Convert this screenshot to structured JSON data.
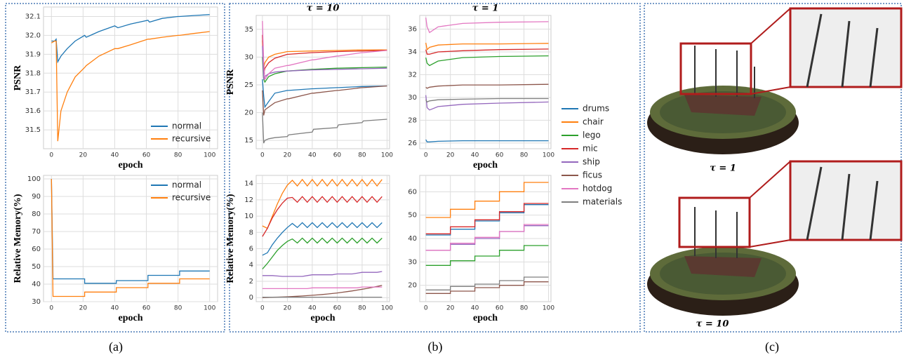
{
  "chart_data": [
    {
      "type": "line",
      "ylabel": "PSNR",
      "xlabel": "epoch",
      "legend": "lower right",
      "x": [
        0,
        2,
        3,
        4,
        6,
        10,
        15,
        21,
        22,
        30,
        40,
        42,
        50,
        61,
        62,
        70,
        80,
        81,
        90,
        100
      ],
      "series": [
        {
          "name": "normal",
          "color": "#1f77b4",
          "values": [
            31.97,
            31.97,
            31.98,
            31.86,
            31.89,
            31.93,
            31.97,
            32.0,
            31.99,
            32.02,
            32.05,
            32.04,
            32.06,
            32.08,
            32.07,
            32.09,
            32.1,
            32.1,
            32.105,
            32.11
          ]
        },
        {
          "name": "recursive",
          "color": "#ff7f0e",
          "values": [
            31.96,
            31.97,
            31.97,
            31.44,
            31.6,
            31.7,
            31.78,
            31.83,
            31.84,
            31.89,
            31.93,
            31.93,
            31.95,
            31.98,
            31.98,
            31.99,
            32.0,
            32.0,
            32.01,
            32.02
          ]
        }
      ],
      "xlim": [
        -5,
        105
      ],
      "xticks": [
        0,
        20,
        40,
        60,
        80,
        100
      ],
      "ylim": [
        31.4,
        32.15
      ],
      "yticks": [
        31.5,
        31.6,
        31.7,
        31.8,
        31.9,
        {
          "value": 32,
          "label": "32.0"
        },
        32.1
      ],
      "grid": true
    },
    {
      "type": "line",
      "ylabel": "Relative Memory(%)",
      "xlabel": "epoch",
      "legend": "upper right",
      "x": [
        0,
        1,
        21,
        21,
        41,
        41,
        61,
        61,
        81,
        81,
        100
      ],
      "series": [
        {
          "name": "normal",
          "color": "#1f77b4",
          "values": [
            100,
            43,
            43,
            40.5,
            40.5,
            42,
            42,
            45,
            45,
            47.5,
            47.5
          ]
        },
        {
          "name": "recursive",
          "color": "#ff7f0e",
          "values": [
            100,
            33,
            33,
            35.5,
            35.5,
            38,
            38,
            40.5,
            40.5,
            43,
            43
          ]
        }
      ],
      "xlim": [
        -5,
        105
      ],
      "xticks": [
        0,
        20,
        40,
        60,
        80,
        100
      ],
      "ylim": [
        30,
        102
      ],
      "yticks": [
        30,
        40,
        50,
        60,
        70,
        80,
        90,
        100
      ],
      "grid": true
    },
    {
      "type": "line",
      "title": "τ = 10",
      "ylabel": "PSNR",
      "legend": "outside right",
      "x": [
        0,
        1,
        2,
        5,
        10,
        20,
        21,
        40,
        41,
        60,
        61,
        80,
        81,
        100
      ],
      "series": [
        {
          "name": "drums",
          "color": "#1f77b4",
          "values": [
            26,
            23,
            21,
            22,
            23.5,
            24,
            24,
            24.3,
            24.3,
            24.5,
            24.5,
            24.7,
            24.7,
            24.8
          ]
        },
        {
          "name": "chair",
          "color": "#ff7f0e",
          "values": [
            33,
            28,
            29,
            30,
            30.5,
            31,
            31,
            31.1,
            31.1,
            31.2,
            31.2,
            31.3,
            31.3,
            31.3
          ]
        },
        {
          "name": "lego",
          "color": "#2ca02c",
          "values": [
            30,
            26,
            25.5,
            26.5,
            27,
            27.5,
            27.5,
            27.8,
            27.8,
            28,
            28,
            28.1,
            28.1,
            28.2
          ]
        },
        {
          "name": "mic",
          "color": "#d62728",
          "values": [
            34,
            27,
            28,
            29,
            29.8,
            30.5,
            30.5,
            30.8,
            30.8,
            31,
            31,
            31.1,
            31.1,
            31.2
          ]
        },
        {
          "name": "ship",
          "color": "#9467bd",
          "values": [
            32,
            26,
            26.5,
            27,
            27.3,
            27.5,
            27.5,
            27.7,
            27.7,
            27.8,
            27.8,
            27.9,
            27.9,
            28
          ]
        },
        {
          "name": "ficus",
          "color": "#8c564b",
          "values": [
            24,
            19.5,
            20.5,
            21,
            21.8,
            22.5,
            22.5,
            23.5,
            23.5,
            24,
            24,
            24.5,
            24.5,
            24.8
          ]
        },
        {
          "name": "hotdog",
          "color": "#e377c2",
          "values": [
            36.5,
            29,
            26,
            27,
            28,
            28.5,
            28.5,
            29.5,
            29.5,
            30.2,
            30.2,
            30.8,
            30.8,
            31.2
          ]
        },
        {
          "name": "materials",
          "color": "#7f7f7f",
          "values": [
            20,
            14.5,
            15,
            15.3,
            15.5,
            15.7,
            16,
            16.5,
            17,
            17.3,
            17.8,
            18.2,
            18.5,
            18.8
          ]
        }
      ],
      "xlim": [
        -5,
        102
      ],
      "xticks": [
        0,
        20,
        40,
        60,
        80,
        100
      ],
      "ylim": [
        13.5,
        37.5
      ],
      "yticks": [
        15,
        20,
        25,
        30,
        35
      ],
      "grid": true
    },
    {
      "type": "line",
      "title": "τ = 1",
      "xlabel": "epoch",
      "x": [
        0,
        1,
        3,
        10,
        30,
        60,
        100
      ],
      "series": [
        {
          "color": "#1f77b4",
          "values": [
            26.3,
            26.1,
            26.1,
            26.15,
            26.2,
            26.2,
            26.2
          ]
        },
        {
          "color": "#ff7f0e",
          "values": [
            34.8,
            34.2,
            34.4,
            34.6,
            34.7,
            34.7,
            34.75
          ]
        },
        {
          "color": "#2ca02c",
          "values": [
            33.5,
            33.0,
            32.8,
            33.2,
            33.5,
            33.6,
            33.65
          ]
        },
        {
          "color": "#d62728",
          "values": [
            34.2,
            33.8,
            33.8,
            34.0,
            34.1,
            34.2,
            34.25
          ]
        },
        {
          "color": "#9467bd",
          "values": [
            30.2,
            29.1,
            28.9,
            29.2,
            29.4,
            29.5,
            29.6
          ]
        },
        {
          "color": "#8c564b",
          "values": [
            30.9,
            30.8,
            30.9,
            31.0,
            31.1,
            31.1,
            31.15
          ]
        },
        {
          "color": "#e377c2",
          "values": [
            37,
            36.2,
            35.7,
            36.2,
            36.5,
            36.6,
            36.65
          ]
        },
        {
          "color": "#7f7f7f",
          "values": [
            29.8,
            29.6,
            29.7,
            29.8,
            29.85,
            29.9,
            29.9
          ]
        }
      ],
      "xlim": [
        -5,
        102
      ],
      "xticks": [
        0,
        20,
        40,
        60,
        80,
        100
      ],
      "ylim": [
        25.5,
        37.2
      ],
      "yticks": [
        26,
        28,
        30,
        32,
        34,
        36
      ],
      "grid": true
    },
    {
      "type": "line",
      "ylabel": "Relative Memory(%)",
      "xlabel": "epoch",
      "x": [
        0,
        4,
        8,
        12,
        16,
        20,
        24,
        28,
        32,
        36,
        40,
        44,
        48,
        52,
        56,
        60,
        64,
        68,
        72,
        76,
        80,
        84,
        88,
        92,
        96
      ],
      "series": [
        {
          "color": "#1f77b4",
          "values": [
            5.2,
            5.5,
            6.5,
            7.3,
            8.0,
            8.6,
            9.1,
            8.6,
            9.2,
            8.6,
            9.2,
            8.6,
            9.2,
            8.6,
            9.2,
            8.6,
            9.2,
            8.6,
            9.2,
            8.6,
            9.2,
            8.6,
            9.2,
            8.6,
            9.2
          ]
        },
        {
          "color": "#ff7f0e",
          "values": [
            8.8,
            8.5,
            10,
            11.5,
            12.8,
            13.8,
            14.4,
            13.7,
            14.5,
            13.7,
            14.5,
            13.7,
            14.5,
            13.7,
            14.5,
            13.7,
            14.5,
            13.7,
            14.5,
            13.7,
            14.5,
            13.7,
            14.5,
            13.7,
            14.5
          ]
        },
        {
          "color": "#2ca02c",
          "values": [
            3.5,
            4.2,
            5,
            5.8,
            6.4,
            6.9,
            7.2,
            6.7,
            7.3,
            6.7,
            7.3,
            6.7,
            7.3,
            6.7,
            7.3,
            6.7,
            7.3,
            6.7,
            7.3,
            6.7,
            7.3,
            6.7,
            7.3,
            6.7,
            7.3
          ]
        },
        {
          "color": "#d62728",
          "values": [
            7.5,
            8.5,
            9.8,
            10.8,
            11.6,
            12.2,
            12.3,
            11.7,
            12.4,
            11.7,
            12.4,
            11.7,
            12.4,
            11.7,
            12.4,
            11.7,
            12.4,
            11.7,
            12.4,
            11.7,
            12.4,
            11.7,
            12.4,
            11.7,
            12.4
          ]
        },
        {
          "color": "#9467bd",
          "values": [
            2.7,
            2.7,
            2.7,
            2.65,
            2.6,
            2.6,
            2.6,
            2.6,
            2.6,
            2.7,
            2.8,
            2.8,
            2.8,
            2.8,
            2.8,
            2.9,
            2.9,
            2.9,
            2.9,
            3.0,
            3.1,
            3.1,
            3.1,
            3.1,
            3.2
          ]
        },
        {
          "color": "#8c564b",
          "values": [
            0,
            0.02,
            0.04,
            0.06,
            0.08,
            0.1,
            0.13,
            0.16,
            0.2,
            0.24,
            0.28,
            0.33,
            0.38,
            0.44,
            0.5,
            0.57,
            0.65,
            0.73,
            0.82,
            0.92,
            1.02,
            1.13,
            1.25,
            1.37,
            1.5
          ]
        },
        {
          "color": "#e377c2",
          "values": [
            1.1,
            1.1,
            1.1,
            1.1,
            1.1,
            1.1,
            1.1,
            1.1,
            1.1,
            1.1,
            1.2,
            1.2,
            1.2,
            1.2,
            1.2,
            1.2,
            1.2,
            1.2,
            1.2,
            1.2,
            1.3,
            1.3,
            1.3,
            1.3,
            1.3
          ]
        },
        {
          "color": "#7f7f7f",
          "values": [
            0.05,
            0.05,
            0.05,
            0.05,
            0.05,
            0.05,
            0.05,
            0.05,
            0.05,
            0.05,
            0.05,
            0.05,
            0.05,
            0.05,
            0.05,
            0.05,
            0.05,
            0.05,
            0.05,
            0.05,
            0.05,
            0.05,
            0.05,
            0.05,
            0.05
          ]
        }
      ],
      "xlim": [
        -5,
        102
      ],
      "xticks": [
        0,
        20,
        40,
        60,
        80,
        100
      ],
      "ylim": [
        -0.5,
        15
      ],
      "yticks": [
        0,
        2,
        4,
        6,
        8,
        10,
        12,
        14
      ],
      "grid": true
    },
    {
      "type": "line",
      "xlabel": "epoch",
      "x": [
        0,
        20,
        20,
        40,
        40,
        60,
        60,
        80,
        80,
        100
      ],
      "series": [
        {
          "color": "#1f77b4",
          "values": [
            41.5,
            41.5,
            44,
            44,
            47.5,
            47.5,
            51,
            51,
            54.5,
            54.5
          ]
        },
        {
          "color": "#ff7f0e",
          "values": [
            49,
            49,
            52.5,
            52.5,
            56,
            56,
            60,
            60,
            64,
            64
          ]
        },
        {
          "color": "#2ca02c",
          "values": [
            28.5,
            28.5,
            30.5,
            30.5,
            32.5,
            32.5,
            35,
            35,
            37,
            37
          ]
        },
        {
          "color": "#d62728",
          "values": [
            42,
            42,
            45,
            45,
            48,
            48,
            51.5,
            51.5,
            55,
            55
          ]
        },
        {
          "color": "#9467bd",
          "values": [
            35,
            35,
            37.5,
            37.5,
            40,
            40,
            43,
            43,
            45.5,
            45.5
          ]
        },
        {
          "color": "#8c564b",
          "values": [
            16.5,
            16.5,
            17.5,
            17.5,
            19,
            19,
            20,
            20,
            21.5,
            21.5
          ]
        },
        {
          "color": "#e377c2",
          "values": [
            35,
            35,
            38,
            38,
            40.5,
            40.5,
            43,
            43,
            46,
            46
          ]
        },
        {
          "color": "#7f7f7f",
          "values": [
            18,
            18,
            19.5,
            19.5,
            20.5,
            20.5,
            22,
            22,
            23.5,
            23.5
          ]
        }
      ],
      "xlim": [
        -5,
        102
      ],
      "xticks": [
        0,
        20,
        40,
        60,
        80,
        100
      ],
      "ylim": [
        13,
        67
      ],
      "yticks": [
        20,
        30,
        40,
        50,
        60
      ],
      "grid": true
    }
  ],
  "panel_labels": [
    "(a)",
    "(b)",
    "(c)"
  ],
  "image_captions": [
    "τ = 1",
    "τ = 10"
  ]
}
